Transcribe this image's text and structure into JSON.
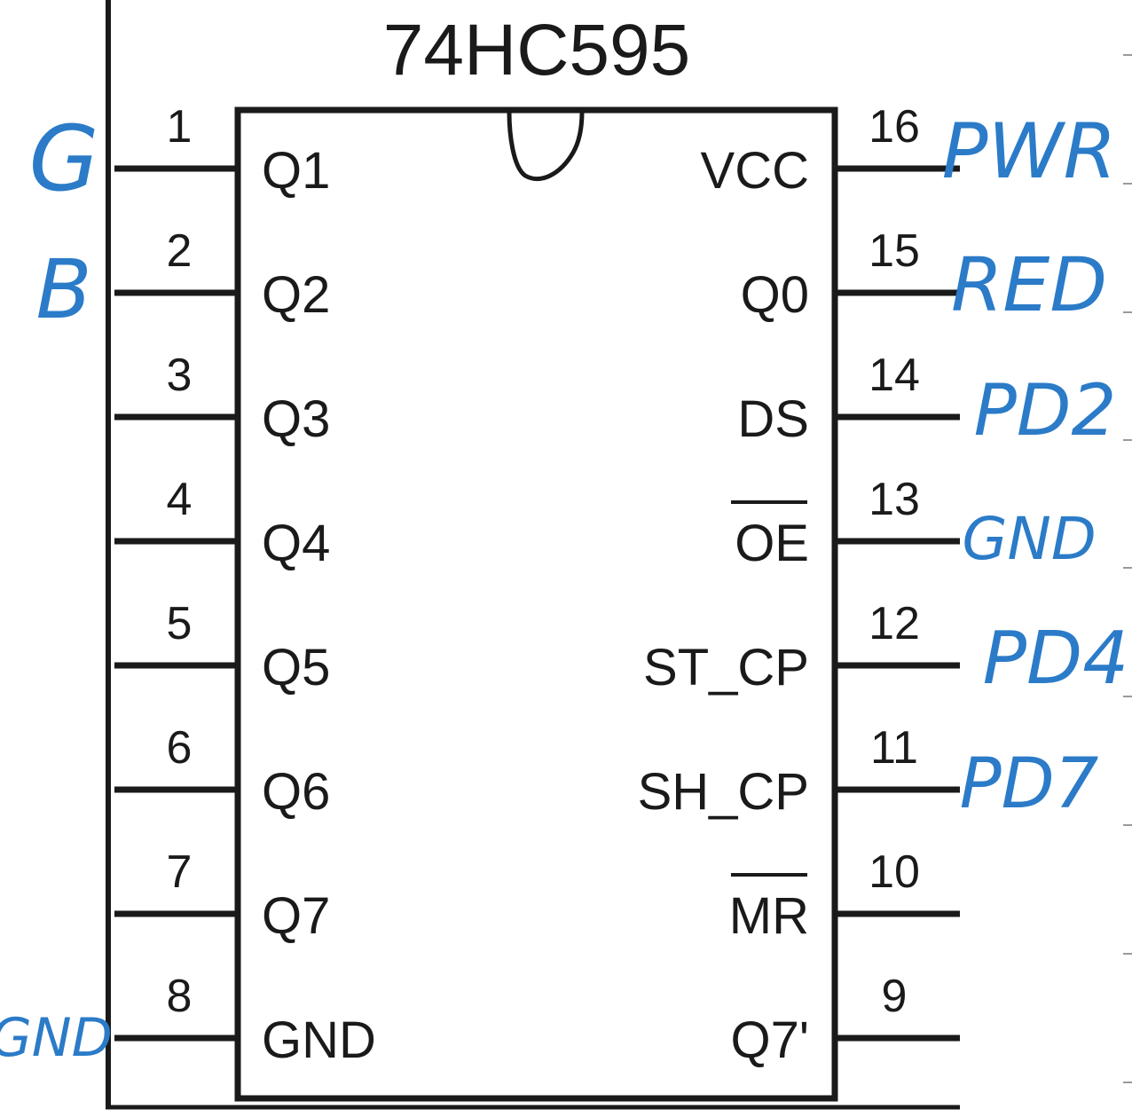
{
  "chip": {
    "title": "74HC595"
  },
  "left_pins": [
    {
      "number": "1",
      "name": "Q1",
      "note": "G"
    },
    {
      "number": "2",
      "name": "Q2",
      "note": "B"
    },
    {
      "number": "3",
      "name": "Q3",
      "note": ""
    },
    {
      "number": "4",
      "name": "Q4",
      "note": ""
    },
    {
      "number": "5",
      "name": "Q5",
      "note": ""
    },
    {
      "number": "6",
      "name": "Q6",
      "note": ""
    },
    {
      "number": "7",
      "name": "Q7",
      "note": ""
    },
    {
      "number": "8",
      "name": "GND",
      "note": "GND"
    }
  ],
  "right_pins": [
    {
      "number": "16",
      "name": "VCC",
      "note": "PWR",
      "overline": false
    },
    {
      "number": "15",
      "name": "Q0",
      "note": "RED",
      "overline": false
    },
    {
      "number": "14",
      "name": "DS",
      "note": "PD2",
      "overline": false
    },
    {
      "number": "13",
      "name": "OE",
      "note": "GND",
      "overline": true
    },
    {
      "number": "12",
      "name": "ST_CP",
      "note": "PD4",
      "overline": false
    },
    {
      "number": "11",
      "name": "SH_CP",
      "note": "PD7",
      "overline": false
    },
    {
      "number": "10",
      "name": "MR",
      "note": "",
      "overline": true
    },
    {
      "number": "9",
      "name": "Q7'",
      "note": "",
      "overline": false
    }
  ],
  "colors": {
    "ink": "#1a1a1a",
    "annotation": "#2b7bc8",
    "background": "#ffffff"
  }
}
